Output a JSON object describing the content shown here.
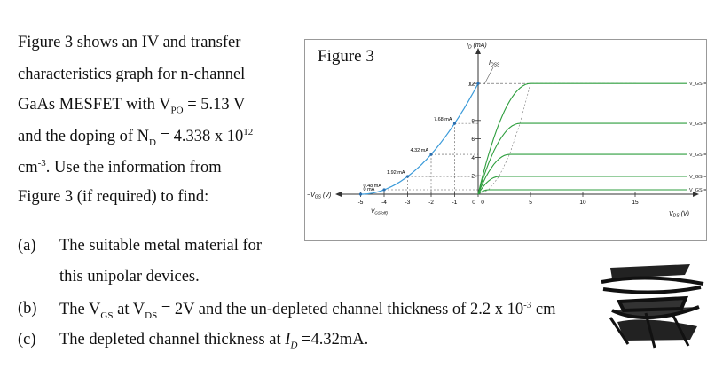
{
  "intro_lines": [
    "Figure 3 shows an IV and transfer",
    "characteristics graph for n-channel",
    "GaAs MESFET with V",
    "and the doping of N",
    "cm",
    "Figure 3 (if required) to find:"
  ],
  "intro": {
    "vpo_sub": "PO",
    "vpo_rest": " = 5.13 V",
    "nd_sub": "D",
    "nd_rest": " = 4.338 x 10",
    "nd_exp": "12",
    "cm_exp": "-3",
    "cm_rest": ".  Use  the  information  from"
  },
  "questions": {
    "a_label": "(a)",
    "a_line1": "The suitable metal material for",
    "a_line2": "this unipolar devices.",
    "b_label": "(b)",
    "b_text_1": "The V",
    "b_sub1": "GS",
    "b_text_2": " at V",
    "b_sub2": "DS",
    "b_text_3": " = 2V and the un-depleted channel thickness of 2.2 x 10",
    "b_exp": "-3",
    "b_text_4": " cm",
    "c_label": "(c)",
    "c_text_1": "The depleted channel thickness at ",
    "c_italic": "I",
    "c_sub": "D",
    "c_text_2": " =4.32mA."
  },
  "figure": {
    "title": "Figure 3",
    "y_axis_label": "I_D (mA)",
    "x_axis_label": "V_DS (V)",
    "neg_axis_label": "−V_GS (V)",
    "idss_label": "I_DSS",
    "vgs_off_label": "V_GS(off)",
    "colors": {
      "transfer": "#3a9ad9",
      "output": "#2e9e3e",
      "grid": "#555555"
    }
  },
  "chart_data": {
    "type": "line",
    "transfer_curve": {
      "x_label": "−V_GS (V)",
      "points": [
        {
          "vgs": -5,
          "id": 0,
          "label": "0 mA"
        },
        {
          "vgs": -4,
          "id": 0.48,
          "label": "0.48 mA"
        },
        {
          "vgs": -3,
          "id": 1.92,
          "label": "1.92 mA"
        },
        {
          "vgs": -2,
          "id": 4.32,
          "label": "4.32 mA"
        },
        {
          "vgs": -1,
          "id": 7.68,
          "label": "7.68 mA"
        },
        {
          "vgs": 0,
          "id": 12,
          "label": "12"
        }
      ],
      "x_ticks": [
        "-5",
        "-4",
        "-3",
        "-2",
        "-1",
        "0"
      ]
    },
    "output_curves": {
      "x_label": "V_DS (V)",
      "x_ticks": [
        "0",
        "5",
        "10",
        "15"
      ],
      "y_ticks": [
        "2",
        "4",
        "6",
        "8",
        "12"
      ],
      "xlim": [
        0,
        20
      ],
      "ylim": [
        0,
        13
      ],
      "series": [
        {
          "name": "V_GS = 0",
          "sat": 12
        },
        {
          "name": "V_GS = −1 V",
          "sat": 7.68
        },
        {
          "name": "V_GS = −2 V",
          "sat": 4.32
        },
        {
          "name": "V_GS = −3 V",
          "sat": 1.92
        },
        {
          "name": "V_GS = −4 V",
          "sat": 0.48
        }
      ]
    }
  }
}
